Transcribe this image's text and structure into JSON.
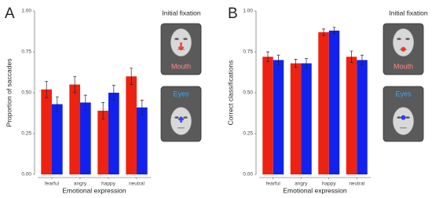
{
  "chart_data": [
    {
      "type": "bar",
      "panel_label": "A",
      "legend_title": "Initial fixation",
      "ylabel": "Proportion of saccades",
      "xlabel": "Emotional expression",
      "categories": [
        "fearful",
        "angry",
        "happy",
        "neutral"
      ],
      "series": [
        {
          "name": "Mouth",
          "color": "#ee2211",
          "values": [
            0.52,
            0.55,
            0.39,
            0.6
          ],
          "errors": [
            0.05,
            0.05,
            0.05,
            0.05
          ]
        },
        {
          "name": "Eyes",
          "color": "#1122ee",
          "values": [
            0.43,
            0.44,
            0.5,
            0.41
          ],
          "errors": [
            0.045,
            0.045,
            0.045,
            0.045
          ]
        }
      ],
      "ylim": [
        0,
        1
      ],
      "yticks": [
        {
          "value": 0,
          "label": "0.00"
        },
        {
          "value": 0.25,
          "label": "0.25"
        },
        {
          "value": 0.5,
          "label": "0.50"
        },
        {
          "value": 0.75,
          "label": "0.75"
        },
        {
          "value": 1,
          "label": "1.00"
        }
      ]
    },
    {
      "type": "bar",
      "panel_label": "B",
      "legend_title": "Initial fixation",
      "ylabel": "Correct classifications",
      "xlabel": "Emotional expression",
      "categories": [
        "fearful",
        "angry",
        "happy",
        "neutral"
      ],
      "series": [
        {
          "name": "Mouth",
          "color": "#ee2211",
          "values": [
            0.72,
            0.68,
            0.87,
            0.72
          ],
          "errors": [
            0.03,
            0.025,
            0.02,
            0.035
          ]
        },
        {
          "name": "Eyes",
          "color": "#1122ee",
          "values": [
            0.7,
            0.68,
            0.88,
            0.7
          ],
          "errors": [
            0.03,
            0.03,
            0.02,
            0.03
          ]
        }
      ],
      "ylim": [
        0,
        1
      ],
      "yticks": [
        {
          "value": 0,
          "label": "0.00"
        },
        {
          "value": 0.25,
          "label": "0.25"
        },
        {
          "value": 0.5,
          "label": "0.50"
        },
        {
          "value": 0.75,
          "label": "0.75"
        },
        {
          "value": 1,
          "label": "1.00"
        }
      ]
    }
  ]
}
